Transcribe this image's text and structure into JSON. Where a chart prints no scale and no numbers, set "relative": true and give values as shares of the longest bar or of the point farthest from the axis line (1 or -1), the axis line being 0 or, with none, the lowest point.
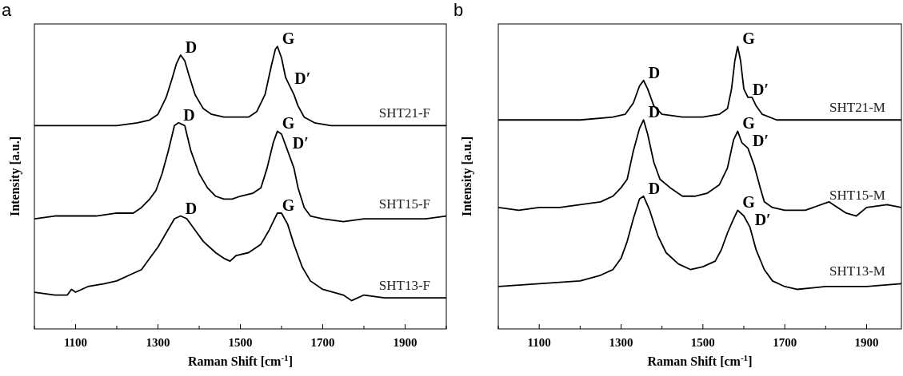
{
  "chart_data": [
    {
      "type": "line",
      "title": "a",
      "xlabel": "Raman Shift [cm$^{-1}$]",
      "ylabel": "Intensity [a.u.]",
      "relative": true,
      "legend": false,
      "marker": "none",
      "line_style": "solid",
      "xlim": [
        1000,
        2000
      ],
      "xticks": [
        {
          "value": 1000,
          "label": null
        },
        1100,
        {
          "value": 1200,
          "label": null
        },
        1300,
        {
          "value": 1400,
          "label": null
        },
        1500,
        {
          "value": 1600,
          "label": null
        },
        1700,
        {
          "value": 1800,
          "label": null
        },
        1900,
        {
          "value": 2000,
          "label": null
        }
      ],
      "series": [
        {
          "name": "SHT21-F",
          "color": "#000000",
          "x": [
            1000,
            1100,
            1200,
            1250,
            1280,
            1300,
            1320,
            1335,
            1345,
            1355,
            1365,
            1375,
            1390,
            1410,
            1430,
            1460,
            1490,
            1520,
            1540,
            1560,
            1575,
            1585,
            1590,
            1600,
            1610,
            1620,
            1630,
            1640,
            1655,
            1680,
            1720,
            1800,
            1900,
            2000
          ],
          "values": [
            0.72,
            0.72,
            0.72,
            0.73,
            0.74,
            0.76,
            0.82,
            0.89,
            0.94,
            0.97,
            0.95,
            0.9,
            0.83,
            0.78,
            0.76,
            0.75,
            0.75,
            0.75,
            0.77,
            0.83,
            0.93,
            0.99,
            1.0,
            0.96,
            0.89,
            0.86,
            0.83,
            0.79,
            0.75,
            0.73,
            0.72,
            0.72,
            0.72,
            0.72
          ]
        },
        {
          "name": "SHT15-F",
          "color": "#000000",
          "x": [
            1000,
            1050,
            1100,
            1150,
            1200,
            1240,
            1260,
            1280,
            1295,
            1310,
            1325,
            1340,
            1350,
            1365,
            1380,
            1400,
            1420,
            1440,
            1460,
            1480,
            1500,
            1530,
            1550,
            1565,
            1580,
            1590,
            1600,
            1615,
            1630,
            1640,
            1655,
            1670,
            1700,
            1750,
            1800,
            1850,
            1900,
            1950,
            2000
          ],
          "values": [
            0.39,
            0.4,
            0.4,
            0.4,
            0.41,
            0.41,
            0.43,
            0.46,
            0.49,
            0.55,
            0.63,
            0.72,
            0.73,
            0.72,
            0.63,
            0.55,
            0.5,
            0.47,
            0.46,
            0.46,
            0.47,
            0.48,
            0.5,
            0.57,
            0.66,
            0.7,
            0.69,
            0.63,
            0.57,
            0.5,
            0.43,
            0.4,
            0.39,
            0.38,
            0.39,
            0.39,
            0.39,
            0.39,
            0.4
          ]
        },
        {
          "name": "SHT13-F",
          "color": "#000000",
          "x": [
            1000,
            1050,
            1080,
            1090,
            1100,
            1130,
            1170,
            1200,
            1230,
            1260,
            1280,
            1300,
            1320,
            1340,
            1355,
            1370,
            1390,
            1410,
            1440,
            1460,
            1475,
            1490,
            1520,
            1550,
            1570,
            1590,
            1600,
            1615,
            1630,
            1650,
            1670,
            1700,
            1750,
            1770,
            1800,
            1850,
            1900,
            1950,
            2000
          ],
          "values": [
            0.13,
            0.12,
            0.12,
            0.14,
            0.13,
            0.15,
            0.16,
            0.17,
            0.19,
            0.21,
            0.25,
            0.29,
            0.34,
            0.39,
            0.4,
            0.39,
            0.35,
            0.31,
            0.27,
            0.25,
            0.24,
            0.26,
            0.27,
            0.3,
            0.35,
            0.41,
            0.41,
            0.37,
            0.3,
            0.22,
            0.17,
            0.14,
            0.12,
            0.1,
            0.12,
            0.11,
            0.11,
            0.11,
            0.11
          ]
        }
      ],
      "annotations": [
        {
          "text": "D",
          "x": 1355,
          "y": 0.97
        },
        {
          "text": "G",
          "x": 1590,
          "y": 1.0
        },
        {
          "text": "D′",
          "x": 1620,
          "y": 0.86
        },
        {
          "text": "D",
          "x": 1350,
          "y": 0.73
        },
        {
          "text": "G",
          "x": 1590,
          "y": 0.7
        },
        {
          "text": "D′",
          "x": 1615,
          "y": 0.63
        },
        {
          "text": "D",
          "x": 1355,
          "y": 0.4
        },
        {
          "text": "G",
          "x": 1590,
          "y": 0.41
        }
      ]
    },
    {
      "type": "line",
      "title": "b",
      "xlabel": "Raman Shift [cm$^{-1}$]",
      "ylabel": "Intensity [a.u.]",
      "relative": true,
      "legend": false,
      "marker": "none",
      "line_style": "solid",
      "xlim": [
        1000,
        1985
      ],
      "xticks": [
        {
          "value": 1000,
          "label": null
        },
        1100,
        {
          "value": 1200,
          "label": null
        },
        1300,
        {
          "value": 1400,
          "label": null
        },
        1500,
        {
          "value": 1600,
          "label": null
        },
        1700,
        {
          "value": 1800,
          "label": null
        },
        1900
      ],
      "series": [
        {
          "name": "SHT21-M",
          "color": "#000000",
          "x": [
            1000,
            1200,
            1280,
            1310,
            1330,
            1345,
            1355,
            1365,
            1380,
            1400,
            1450,
            1500,
            1540,
            1560,
            1570,
            1578,
            1585,
            1592,
            1600,
            1610,
            1620,
            1630,
            1645,
            1680,
            1800,
            1985
          ],
          "values": [
            0.74,
            0.74,
            0.75,
            0.76,
            0.8,
            0.86,
            0.88,
            0.85,
            0.79,
            0.76,
            0.75,
            0.75,
            0.76,
            0.78,
            0.85,
            0.95,
            1.0,
            0.95,
            0.85,
            0.82,
            0.82,
            0.79,
            0.76,
            0.74,
            0.74,
            0.74
          ]
        },
        {
          "name": "SHT15-M",
          "color": "#000000",
          "x": [
            1000,
            1050,
            1100,
            1150,
            1200,
            1250,
            1280,
            1300,
            1315,
            1330,
            1345,
            1355,
            1365,
            1380,
            1395,
            1420,
            1450,
            1480,
            1510,
            1540,
            1560,
            1575,
            1585,
            1595,
            1610,
            1625,
            1640,
            1650,
            1670,
            1700,
            1750,
            1808,
            1850,
            1875,
            1900,
            1950,
            1985
          ],
          "values": [
            0.43,
            0.42,
            0.43,
            0.43,
            0.44,
            0.45,
            0.47,
            0.5,
            0.53,
            0.63,
            0.71,
            0.74,
            0.69,
            0.59,
            0.53,
            0.5,
            0.47,
            0.47,
            0.48,
            0.51,
            0.57,
            0.67,
            0.7,
            0.66,
            0.64,
            0.58,
            0.5,
            0.45,
            0.43,
            0.42,
            0.42,
            0.45,
            0.41,
            0.4,
            0.43,
            0.44,
            0.43
          ]
        },
        {
          "name": "SHT13-M",
          "color": "#000000",
          "x": [
            1000,
            1100,
            1200,
            1250,
            1280,
            1300,
            1315,
            1330,
            1345,
            1355,
            1370,
            1390,
            1410,
            1440,
            1470,
            1500,
            1530,
            1545,
            1560,
            1575,
            1585,
            1600,
            1615,
            1630,
            1650,
            1670,
            1700,
            1730,
            1800,
            1900,
            1985
          ],
          "values": [
            0.15,
            0.16,
            0.17,
            0.19,
            0.21,
            0.25,
            0.31,
            0.39,
            0.46,
            0.47,
            0.42,
            0.33,
            0.27,
            0.23,
            0.21,
            0.22,
            0.24,
            0.28,
            0.34,
            0.39,
            0.42,
            0.4,
            0.36,
            0.28,
            0.21,
            0.17,
            0.15,
            0.14,
            0.15,
            0.15,
            0.16
          ]
        }
      ],
      "annotations": [
        {
          "text": "D",
          "x": 1355,
          "y": 0.88
        },
        {
          "text": "G",
          "x": 1585,
          "y": 1.0
        },
        {
          "text": "D′",
          "x": 1610,
          "y": 0.82
        },
        {
          "text": "D",
          "x": 1355,
          "y": 0.74
        },
        {
          "text": "G",
          "x": 1585,
          "y": 0.7
        },
        {
          "text": "D′",
          "x": 1610,
          "y": 0.64
        },
        {
          "text": "D",
          "x": 1355,
          "y": 0.47
        },
        {
          "text": "G",
          "x": 1585,
          "y": 0.42
        },
        {
          "text": "D′",
          "x": 1615,
          "y": 0.36
        }
      ]
    }
  ]
}
